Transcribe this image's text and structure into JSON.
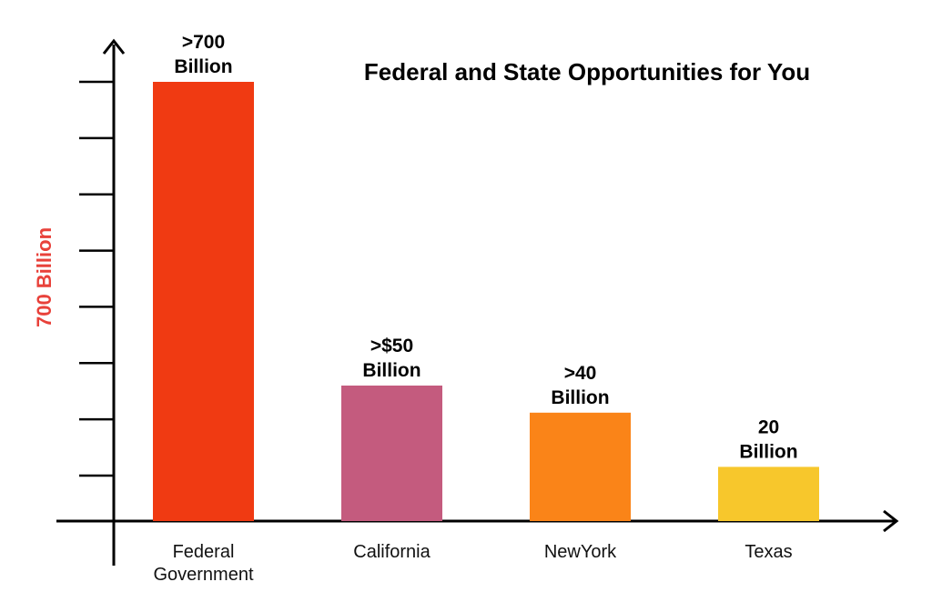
{
  "chart_data": {
    "type": "bar",
    "title": "Federal and State Opportunities for You",
    "ylabel": "700 Billion",
    "xlabel": "",
    "categories": [
      [
        "Federal",
        "Government"
      ],
      [
        "California"
      ],
      [
        "NewYork"
      ],
      [
        "Texas"
      ]
    ],
    "values": [
      700,
      50,
      40,
      20
    ],
    "data_labels": [
      [
        ">700",
        "Billion"
      ],
      [
        ">$50",
        "Billion"
      ],
      [
        ">40",
        "Billion"
      ],
      [
        "20",
        "Billion"
      ]
    ],
    "bar_colors": [
      "#F03A12",
      "#C45B7E",
      "#FA8418",
      "#F7C72C"
    ],
    "ylabel_color": "#E8413A",
    "axis_color": "#000000",
    "grid": false,
    "y_ticks": 8
  }
}
